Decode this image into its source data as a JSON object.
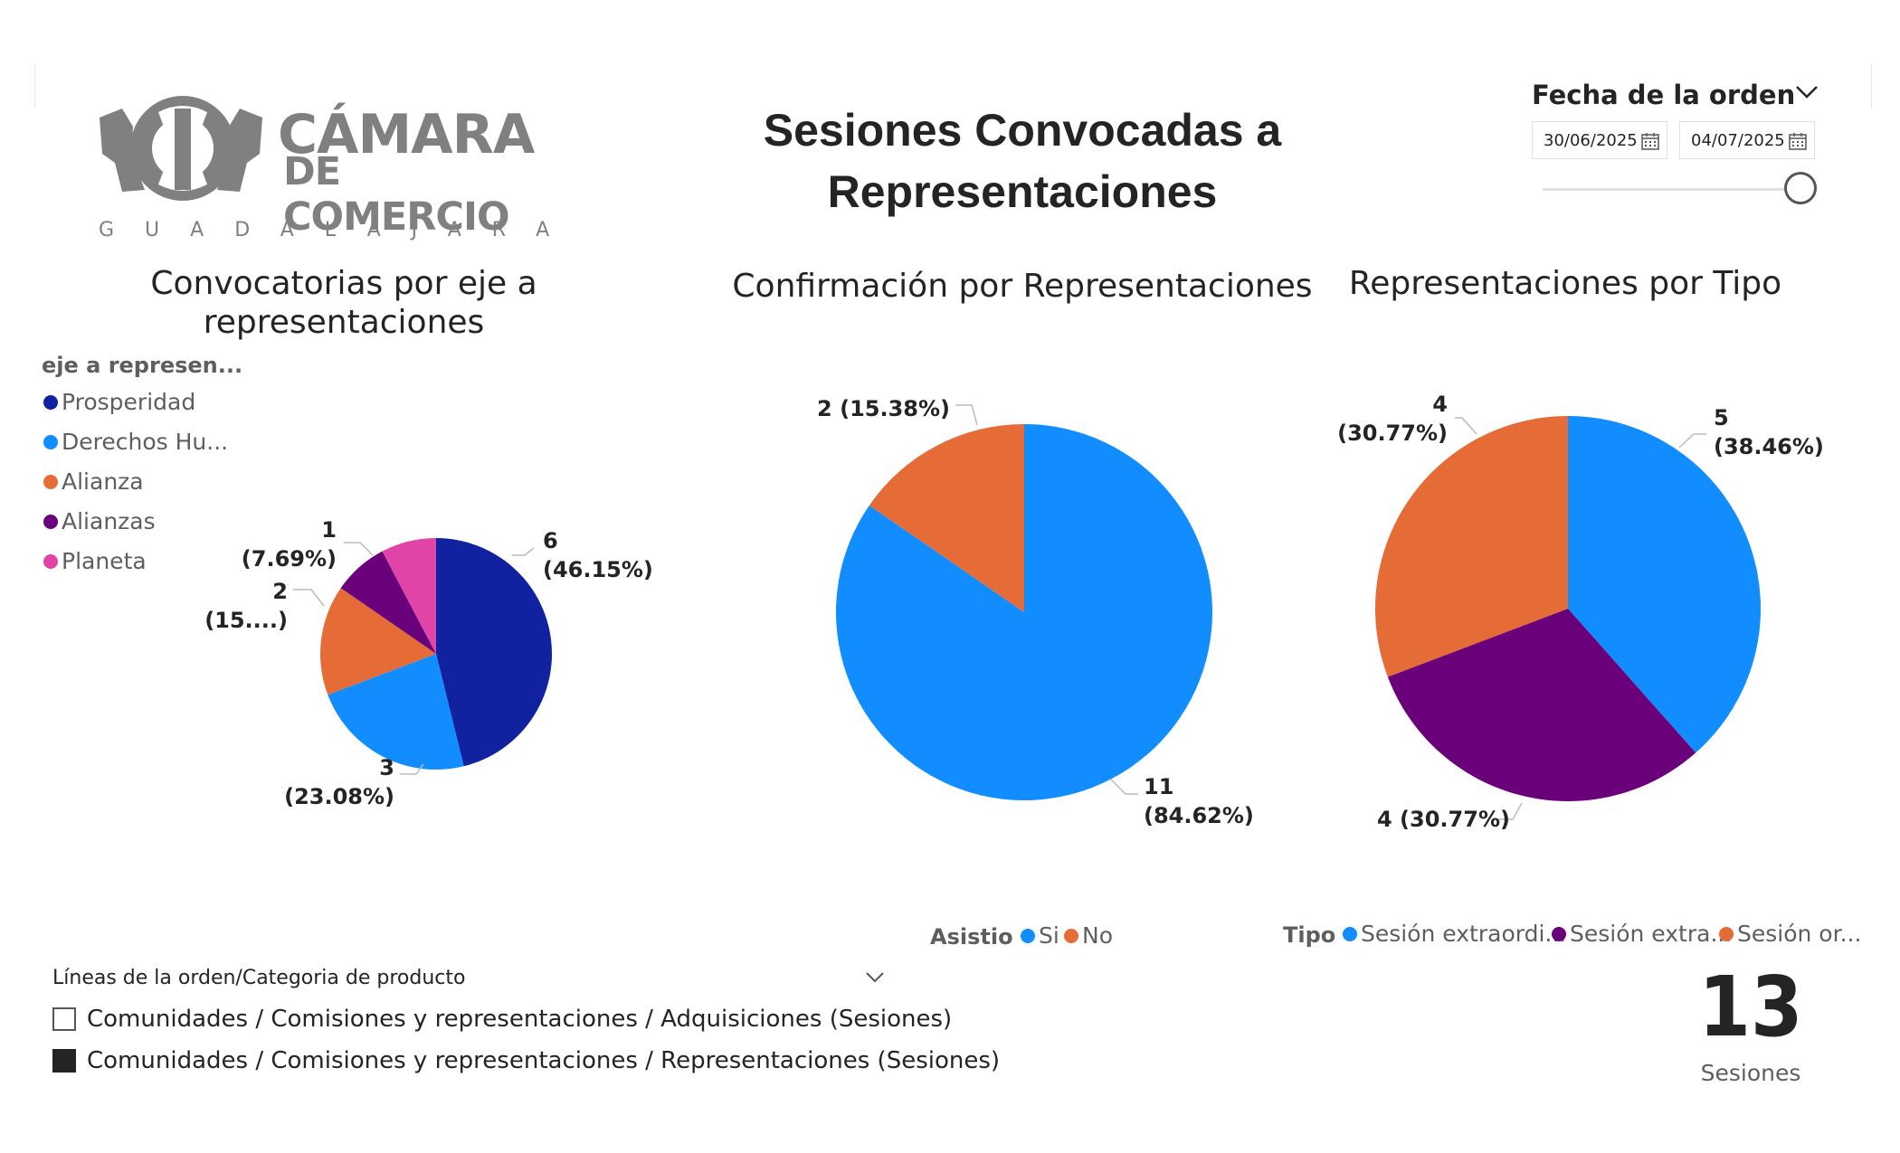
{
  "logo": {
    "line1": "CÁMARA",
    "line2": "DE COMERCIO",
    "city": "GUADALAJARA",
    "color": "#808080"
  },
  "page_title": "Sesiones Convocadas a Representaciones",
  "date_slicer": {
    "title": "Fecha de la orden",
    "start": "30/06/2025",
    "end": "04/07/2025",
    "position": 1.0
  },
  "colors": {
    "navy": "#1122a0",
    "blue": "#118dff",
    "orange": "#e66c37",
    "purple": "#6b007b",
    "pink": "#e044a7"
  },
  "chart_data": [
    {
      "type": "pie",
      "title": "Convocatorias por eje a representaciones",
      "legend_title": "eje a represen...",
      "legend_position": "left",
      "slices": [
        {
          "name": "Prosperidad",
          "value": 6,
          "label_count": "6",
          "label_pct": "(46.15%)",
          "color": "#1122a0"
        },
        {
          "name": "Derechos Hu...",
          "value": 3,
          "label_count": "3",
          "label_pct": "(23.08%)",
          "color": "#118dff"
        },
        {
          "name": "Alianza",
          "value": 2,
          "label_count": "2",
          "label_pct": "(15....)",
          "color": "#e66c37"
        },
        {
          "name": "Alianzas",
          "value": 1,
          "label_count": "1",
          "label_pct": "(7.69%)",
          "color": "#6b007b"
        },
        {
          "name": "Planeta",
          "value": 1,
          "label_count": "",
          "label_pct": "",
          "color": "#e044a7"
        }
      ]
    },
    {
      "type": "pie",
      "title": "Confirmación por Representaciones",
      "legend_title": "Asistio",
      "legend_position": "bottom",
      "slices": [
        {
          "name": "Si",
          "value": 11,
          "label_count": "11",
          "label_pct": "(84.62%)",
          "color": "#118dff"
        },
        {
          "name": "No",
          "value": 2,
          "label_count": "2 (15.38%)",
          "label_pct": "",
          "color": "#e66c37"
        }
      ]
    },
    {
      "type": "pie",
      "title": "Representaciones por Tipo",
      "legend_title": "Tipo",
      "legend_position": "bottom",
      "slices": [
        {
          "name": "Sesión extraordi...",
          "value": 5,
          "label_count": "5",
          "label_pct": "(38.46%)",
          "color": "#118dff"
        },
        {
          "name": "Sesión extra...",
          "value": 4,
          "label_count": "4 (30.77%)",
          "label_pct": "",
          "color": "#6b007b"
        },
        {
          "name": "Sesión or...",
          "value": 4,
          "label_count": "4",
          "label_pct": "(30.77%)",
          "color": "#e66c37"
        }
      ]
    }
  ],
  "product_filter": {
    "title": "Líneas de la orden/Categoria de producto",
    "items": [
      {
        "label": "Comunidades / Comisiones y representaciones / Adquisiciones (Sesiones)",
        "checked": false
      },
      {
        "label": "Comunidades / Comisiones y representaciones / Representaciones (Sesiones)",
        "checked": true
      }
    ]
  },
  "kpi": {
    "value": "13",
    "label": "Sesiones"
  }
}
